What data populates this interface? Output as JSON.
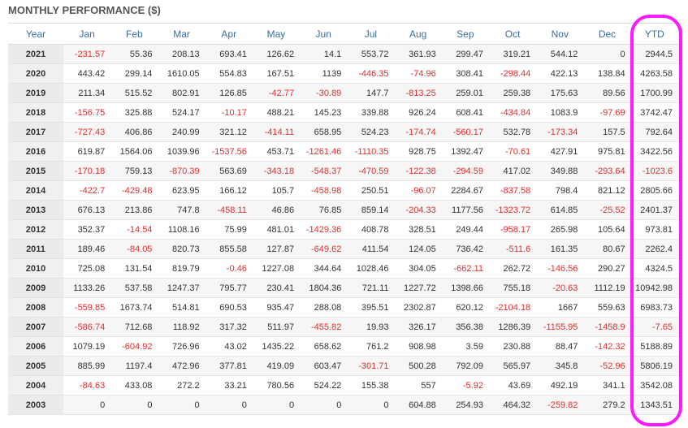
{
  "header": {
    "title": "MONTHLY PERFORMANCE ($)"
  },
  "table": {
    "columns": [
      "Year",
      "Jan",
      "Feb",
      "Mar",
      "Apr",
      "May",
      "Jun",
      "Jul",
      "Aug",
      "Sep",
      "Oct",
      "Nov",
      "Dec",
      "YTD"
    ],
    "rows": [
      {
        "year": 2021,
        "values": [
          -231.57,
          55.36,
          208.13,
          693.41,
          126.62,
          14.1,
          553.72,
          361.93,
          299.47,
          319.21,
          544.12,
          0,
          2944.5
        ]
      },
      {
        "year": 2020,
        "values": [
          443.42,
          299.14,
          1610.05,
          554.83,
          167.51,
          1139,
          -446.35,
          -74.96,
          308.41,
          -298.44,
          422.13,
          138.84,
          4263.58
        ]
      },
      {
        "year": 2019,
        "values": [
          211.34,
          515.52,
          802.91,
          126.85,
          -42.77,
          -30.89,
          147.7,
          -813.25,
          259.01,
          259.38,
          175.63,
          89.56,
          1700.99
        ]
      },
      {
        "year": 2018,
        "values": [
          -156.75,
          325.88,
          524.17,
          -10.17,
          488.21,
          145.23,
          339.88,
          926.24,
          608.41,
          -434.84,
          1083.9,
          -97.69,
          3742.47
        ]
      },
      {
        "year": 2017,
        "values": [
          -727.43,
          406.86,
          240.99,
          321.12,
          -414.11,
          658.95,
          524.23,
          -174.74,
          -560.17,
          532.78,
          -173.34,
          157.5,
          792.64
        ]
      },
      {
        "year": 2016,
        "values": [
          619.87,
          1564.06,
          1039.96,
          -1537.56,
          453.71,
          -1261.46,
          -1110.35,
          928.75,
          1392.47,
          -70.61,
          427.91,
          975.81,
          3422.56
        ]
      },
      {
        "year": 2015,
        "values": [
          -170.18,
          759.13,
          -870.39,
          563.69,
          -343.18,
          -548.37,
          -470.59,
          -122.38,
          -294.59,
          417.02,
          349.88,
          -293.64,
          -1023.6
        ]
      },
      {
        "year": 2014,
        "values": [
          -422.7,
          -429.48,
          623.95,
          166.12,
          105.7,
          -458.98,
          250.51,
          -96.07,
          2284.67,
          -837.58,
          798.4,
          821.12,
          2805.66
        ]
      },
      {
        "year": 2013,
        "values": [
          676.13,
          213.86,
          747.8,
          -458.11,
          46.86,
          76.85,
          859.14,
          -204.33,
          1177.56,
          -1323.72,
          614.85,
          -25.52,
          2401.37
        ]
      },
      {
        "year": 2012,
        "values": [
          352.37,
          -14.54,
          1108.16,
          75.99,
          481.01,
          -1429.36,
          408.78,
          328.51,
          249.44,
          -958.17,
          265.98,
          105.64,
          973.81
        ]
      },
      {
        "year": 2011,
        "values": [
          189.46,
          -84.05,
          820.73,
          855.58,
          127.87,
          -649.62,
          411.54,
          124.05,
          736.42,
          -511.6,
          161.35,
          80.67,
          2262.4
        ]
      },
      {
        "year": 2010,
        "values": [
          725.08,
          131.54,
          819.79,
          -0.46,
          1227.08,
          344.64,
          1028.46,
          304.05,
          -662.11,
          262.72,
          -146.56,
          290.27,
          4324.5
        ]
      },
      {
        "year": 2009,
        "values": [
          1133.26,
          537.58,
          1247.37,
          795.77,
          230.41,
          1804.36,
          721.11,
          1227.72,
          1398.66,
          755.18,
          -20.63,
          1112.19,
          10942.98
        ]
      },
      {
        "year": 2008,
        "values": [
          -559.85,
          1673.74,
          514.81,
          690.53,
          935.47,
          288.08,
          395.51,
          2302.87,
          620.12,
          -2104.18,
          1667,
          559.63,
          6983.73
        ]
      },
      {
        "year": 2007,
        "values": [
          -586.74,
          712.68,
          118.92,
          317.32,
          511.97,
          -455.82,
          19.93,
          326.17,
          356.38,
          1286.39,
          -1155.95,
          -1458.9,
          -7.65
        ]
      },
      {
        "year": 2006,
        "values": [
          1079.19,
          -604.92,
          726.96,
          43.02,
          1435.22,
          658.62,
          761.2,
          908.98,
          3.59,
          230.88,
          88.47,
          -142.32,
          5188.89
        ]
      },
      {
        "year": 2005,
        "values": [
          885.99,
          1197.4,
          472.96,
          377.81,
          419.09,
          603.47,
          -301.71,
          500.28,
          792.09,
          565.97,
          345.8,
          -52.96,
          5806.19
        ]
      },
      {
        "year": 2004,
        "values": [
          -84.63,
          433.08,
          272.2,
          33.21,
          780.56,
          524.22,
          155.38,
          557,
          -5.92,
          43.69,
          492.19,
          341.1,
          3542.08
        ]
      },
      {
        "year": 2003,
        "values": [
          0,
          0,
          0,
          0,
          0,
          0,
          0,
          604.88,
          254.93,
          464.32,
          -259.82,
          279.2,
          1343.51
        ]
      }
    ]
  }
}
